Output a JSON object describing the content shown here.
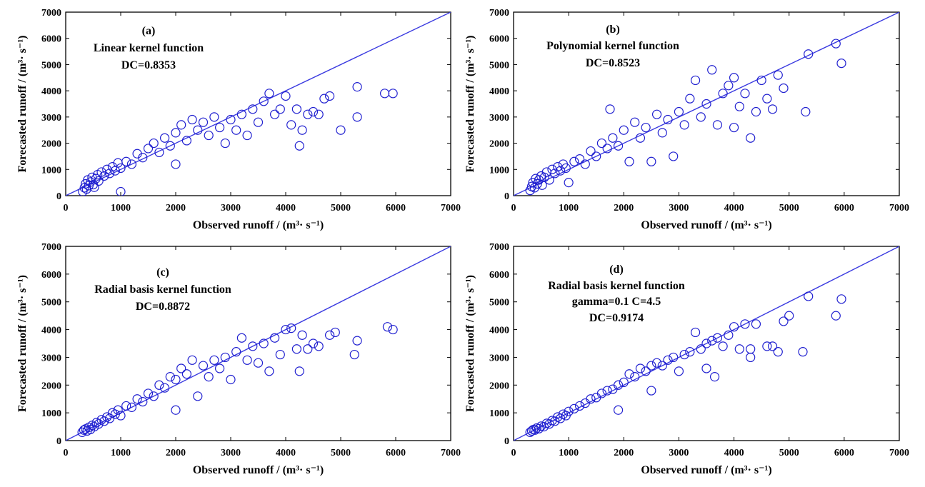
{
  "figure": {
    "marker_color": "#2020d0",
    "line_color": "#3a3ae0",
    "axis_color": "#000000"
  },
  "chart_data": [
    {
      "type": "scatter",
      "panel": "(a)",
      "annotations": [
        "(a)",
        "Linear kernel function",
        "DC=0.8353"
      ],
      "xlabel": "Observed runoff / (m³· s⁻¹)",
      "ylabel": "Forecasted runoff / (m³· s⁻¹)",
      "xlim": [
        0,
        7000
      ],
      "ylim": [
        0,
        7000
      ],
      "xticks": [
        "0",
        "1000",
        "2000",
        "3000",
        "4000",
        "5000",
        "6000",
        "7000"
      ],
      "yticks": [
        "0",
        "1000",
        "2000",
        "3000",
        "4000",
        "5000",
        "6000",
        "7000"
      ],
      "reference_line": [
        [
          0,
          0
        ],
        [
          7000,
          7000
        ]
      ],
      "marker": "open-circle",
      "points": [
        [
          310,
          150
        ],
        [
          340,
          300
        ],
        [
          360,
          450
        ],
        [
          380,
          250
        ],
        [
          400,
          600
        ],
        [
          420,
          380
        ],
        [
          450,
          520
        ],
        [
          480,
          700
        ],
        [
          500,
          420
        ],
        [
          520,
          320
        ],
        [
          550,
          650
        ],
        [
          580,
          800
        ],
        [
          600,
          560
        ],
        [
          650,
          900
        ],
        [
          700,
          750
        ],
        [
          750,
          1000
        ],
        [
          800,
          850
        ],
        [
          850,
          1100
        ],
        [
          900,
          950
        ],
        [
          950,
          1250
        ],
        [
          1000,
          150
        ],
        [
          1000,
          1050
        ],
        [
          1100,
          1300
        ],
        [
          1200,
          1200
        ],
        [
          1300,
          1600
        ],
        [
          1400,
          1450
        ],
        [
          1500,
          1800
        ],
        [
          1600,
          2000
        ],
        [
          1700,
          1650
        ],
        [
          1800,
          2200
        ],
        [
          1900,
          1900
        ],
        [
          2000,
          2400
        ],
        [
          2000,
          1200
        ],
        [
          2100,
          2700
        ],
        [
          2200,
          2100
        ],
        [
          2300,
          2900
        ],
        [
          2400,
          2500
        ],
        [
          2500,
          2800
        ],
        [
          2600,
          2300
        ],
        [
          2700,
          3000
        ],
        [
          2800,
          2600
        ],
        [
          2900,
          2000
        ],
        [
          3000,
          2900
        ],
        [
          3100,
          2500
        ],
        [
          3200,
          3100
        ],
        [
          3300,
          2300
        ],
        [
          3400,
          3300
        ],
        [
          3500,
          2800
        ],
        [
          3600,
          3600
        ],
        [
          3700,
          3900
        ],
        [
          3800,
          3100
        ],
        [
          3900,
          3300
        ],
        [
          4000,
          3800
        ],
        [
          4100,
          2700
        ],
        [
          4200,
          3300
        ],
        [
          4250,
          1900
        ],
        [
          4300,
          2500
        ],
        [
          4400,
          3100
        ],
        [
          4500,
          3200
        ],
        [
          4600,
          3100
        ],
        [
          4700,
          3700
        ],
        [
          4800,
          3800
        ],
        [
          5000,
          2500
        ],
        [
          5300,
          3000
        ],
        [
          5300,
          4150
        ],
        [
          5800,
          3900
        ],
        [
          5950,
          3900
        ]
      ]
    },
    {
      "type": "scatter",
      "panel": "(b)",
      "annotations": [
        "(b)",
        "Polynomial kernel function",
        "DC=0.8523"
      ],
      "xlabel": "Observed runoff / (m³· s⁻¹)",
      "ylabel": "Forecasted runoff / (m³· s⁻¹)",
      "xlim": [
        0,
        7000
      ],
      "ylim": [
        0,
        7000
      ],
      "xticks": [
        "0",
        "1000",
        "2000",
        "3000",
        "4000",
        "5000",
        "6000",
        "7000"
      ],
      "yticks": [
        "0",
        "1000",
        "2000",
        "3000",
        "4000",
        "5000",
        "6000",
        "7000"
      ],
      "reference_line": [
        [
          0,
          0
        ],
        [
          7000,
          7000
        ]
      ],
      "marker": "open-circle",
      "points": [
        [
          300,
          200
        ],
        [
          330,
          350
        ],
        [
          350,
          500
        ],
        [
          380,
          300
        ],
        [
          400,
          650
        ],
        [
          430,
          450
        ],
        [
          460,
          600
        ],
        [
          500,
          750
        ],
        [
          520,
          400
        ],
        [
          560,
          700
        ],
        [
          600,
          900
        ],
        [
          650,
          600
        ],
        [
          700,
          1000
        ],
        [
          750,
          850
        ],
        [
          800,
          1100
        ],
        [
          850,
          950
        ],
        [
          900,
          1200
        ],
        [
          950,
          1050
        ],
        [
          1000,
          500
        ],
        [
          1100,
          1300
        ],
        [
          1200,
          1400
        ],
        [
          1300,
          1200
        ],
        [
          1400,
          1700
        ],
        [
          1500,
          1500
        ],
        [
          1600,
          2000
        ],
        [
          1700,
          1800
        ],
        [
          1750,
          3300
        ],
        [
          1800,
          2200
        ],
        [
          1900,
          1900
        ],
        [
          2000,
          2500
        ],
        [
          2100,
          1300
        ],
        [
          2200,
          2800
        ],
        [
          2300,
          2200
        ],
        [
          2400,
          2600
        ],
        [
          2500,
          1300
        ],
        [
          2600,
          3100
        ],
        [
          2700,
          2400
        ],
        [
          2800,
          2900
        ],
        [
          2900,
          1500
        ],
        [
          3000,
          3200
        ],
        [
          3100,
          2700
        ],
        [
          3200,
          3700
        ],
        [
          3300,
          4400
        ],
        [
          3400,
          3000
        ],
        [
          3500,
          3500
        ],
        [
          3600,
          4800
        ],
        [
          3700,
          2700
        ],
        [
          3800,
          3900
        ],
        [
          3900,
          4200
        ],
        [
          4000,
          2600
        ],
        [
          4000,
          4500
        ],
        [
          4100,
          3400
        ],
        [
          4200,
          3900
        ],
        [
          4300,
          2200
        ],
        [
          4400,
          3200
        ],
        [
          4500,
          4400
        ],
        [
          4600,
          3700
        ],
        [
          4700,
          3300
        ],
        [
          4800,
          4600
        ],
        [
          4900,
          4100
        ],
        [
          5300,
          3200
        ],
        [
          5350,
          5400
        ],
        [
          5850,
          5800
        ],
        [
          5950,
          5050
        ]
      ]
    },
    {
      "type": "scatter",
      "panel": "(c)",
      "annotations": [
        "(c)",
        "Radial basis kernel function",
        "DC=0.8872"
      ],
      "xlabel": "Observed runoff / (m³· s⁻¹)",
      "ylabel": "Forecasted runoff / (m³· s⁻¹)",
      "xlim": [
        0,
        7000
      ],
      "ylim": [
        0,
        7000
      ],
      "xticks": [
        "0",
        "1000",
        "2000",
        "3000",
        "4000",
        "5000",
        "6000",
        "7000"
      ],
      "yticks": [
        "0",
        "1000",
        "2000",
        "3000",
        "4000",
        "5000",
        "6000",
        "7000"
      ],
      "reference_line": [
        [
          0,
          0
        ],
        [
          7000,
          7000
        ]
      ],
      "marker": "open-circle",
      "points": [
        [
          300,
          300
        ],
        [
          330,
          380
        ],
        [
          360,
          420
        ],
        [
          390,
          350
        ],
        [
          420,
          480
        ],
        [
          450,
          400
        ],
        [
          480,
          550
        ],
        [
          520,
          500
        ],
        [
          560,
          650
        ],
        [
          600,
          600
        ],
        [
          650,
          750
        ],
        [
          700,
          700
        ],
        [
          750,
          850
        ],
        [
          800,
          800
        ],
        [
          850,
          1000
        ],
        [
          900,
          950
        ],
        [
          950,
          1100
        ],
        [
          1000,
          900
        ],
        [
          1100,
          1250
        ],
        [
          1200,
          1200
        ],
        [
          1300,
          1500
        ],
        [
          1400,
          1400
        ],
        [
          1500,
          1700
        ],
        [
          1600,
          1600
        ],
        [
          1700,
          2000
        ],
        [
          1800,
          1900
        ],
        [
          1900,
          2300
        ],
        [
          2000,
          1100
        ],
        [
          2000,
          2200
        ],
        [
          2100,
          2600
        ],
        [
          2200,
          2400
        ],
        [
          2300,
          2900
        ],
        [
          2400,
          1600
        ],
        [
          2500,
          2700
        ],
        [
          2600,
          2300
        ],
        [
          2700,
          2900
        ],
        [
          2800,
          2600
        ],
        [
          2900,
          3000
        ],
        [
          3000,
          2200
        ],
        [
          3100,
          3200
        ],
        [
          3200,
          3700
        ],
        [
          3300,
          2900
        ],
        [
          3400,
          3400
        ],
        [
          3500,
          2800
        ],
        [
          3600,
          3500
        ],
        [
          3700,
          2500
        ],
        [
          3800,
          3700
        ],
        [
          3900,
          3100
        ],
        [
          4000,
          4000
        ],
        [
          4100,
          4050
        ],
        [
          4200,
          3300
        ],
        [
          4250,
          2500
        ],
        [
          4300,
          3800
        ],
        [
          4400,
          3300
        ],
        [
          4500,
          3500
        ],
        [
          4600,
          3400
        ],
        [
          4800,
          3800
        ],
        [
          4900,
          3900
        ],
        [
          5250,
          3100
        ],
        [
          5300,
          3600
        ],
        [
          5850,
          4100
        ],
        [
          5950,
          4000
        ]
      ]
    },
    {
      "type": "scatter",
      "panel": "(d)",
      "annotations": [
        "(d)",
        "Radial basis kernel function",
        "gamma=0.1 C=4.5",
        "DC=0.9174"
      ],
      "xlabel": "Observed runoff / (m³· s⁻¹)",
      "ylabel": "Forecasted runoff / (m³· s⁻¹)",
      "xlim": [
        0,
        7000
      ],
      "ylim": [
        0,
        7000
      ],
      "xticks": [
        "0",
        "1000",
        "2000",
        "3000",
        "4000",
        "5000",
        "6000",
        "7000"
      ],
      "yticks": [
        "0",
        "1000",
        "2000",
        "3000",
        "4000",
        "5000",
        "6000",
        "7000"
      ],
      "reference_line": [
        [
          0,
          0
        ],
        [
          7000,
          7000
        ]
      ],
      "marker": "open-circle",
      "points": [
        [
          300,
          300
        ],
        [
          330,
          350
        ],
        [
          360,
          400
        ],
        [
          390,
          380
        ],
        [
          420,
          450
        ],
        [
          460,
          430
        ],
        [
          500,
          520
        ],
        [
          550,
          500
        ],
        [
          600,
          620
        ],
        [
          650,
          600
        ],
        [
          700,
          720
        ],
        [
          750,
          700
        ],
        [
          800,
          850
        ],
        [
          850,
          800
        ],
        [
          900,
          950
        ],
        [
          950,
          900
        ],
        [
          1000,
          1050
        ],
        [
          1100,
          1150
        ],
        [
          1200,
          1250
        ],
        [
          1300,
          1350
        ],
        [
          1400,
          1500
        ],
        [
          1500,
          1550
        ],
        [
          1600,
          1700
        ],
        [
          1700,
          1800
        ],
        [
          1800,
          1850
        ],
        [
          1900,
          1100
        ],
        [
          1900,
          2000
        ],
        [
          2000,
          2100
        ],
        [
          2100,
          2400
        ],
        [
          2200,
          2300
        ],
        [
          2300,
          2600
        ],
        [
          2400,
          2500
        ],
        [
          2500,
          1800
        ],
        [
          2500,
          2700
        ],
        [
          2600,
          2800
        ],
        [
          2700,
          2700
        ],
        [
          2800,
          2900
        ],
        [
          2900,
          3000
        ],
        [
          3000,
          2500
        ],
        [
          3100,
          3100
        ],
        [
          3200,
          3200
        ],
        [
          3300,
          3900
        ],
        [
          3400,
          3300
        ],
        [
          3500,
          2600
        ],
        [
          3500,
          3500
        ],
        [
          3600,
          3600
        ],
        [
          3650,
          2300
        ],
        [
          3700,
          3700
        ],
        [
          3800,
          3400
        ],
        [
          3900,
          3800
        ],
        [
          4000,
          4100
        ],
        [
          4100,
          3300
        ],
        [
          4200,
          4200
        ],
        [
          4300,
          3000
        ],
        [
          4300,
          3300
        ],
        [
          4400,
          4200
        ],
        [
          4600,
          3400
        ],
        [
          4700,
          3400
        ],
        [
          4800,
          3200
        ],
        [
          4900,
          4300
        ],
        [
          5000,
          4500
        ],
        [
          5250,
          3200
        ],
        [
          5350,
          5200
        ],
        [
          5850,
          4500
        ],
        [
          5950,
          5100
        ]
      ]
    }
  ]
}
